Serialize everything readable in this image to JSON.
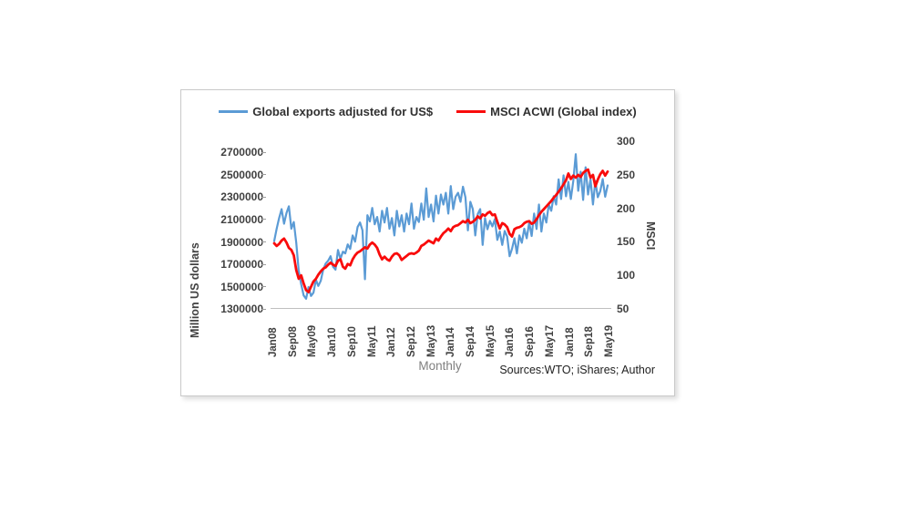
{
  "chart_data": {
    "type": "line",
    "frequency": "monthly",
    "x_start": "Jan08",
    "x_end": "May19",
    "xlabel": "Monthly",
    "x_tick_labels": [
      "Jan08",
      "Sep08",
      "May09",
      "Jan10",
      "Sep10",
      "May11",
      "Jan12",
      "Sep12",
      "May13",
      "Jan14",
      "Sep14",
      "May15",
      "Jan16",
      "Sep16",
      "May17",
      "Jan18",
      "Sep18",
      "May19"
    ],
    "left_axis": {
      "title": "Million US dollars",
      "min": 1300000,
      "max": 2700000,
      "tick_step": 200000,
      "tick_labels": [
        "2700000",
        "2500000",
        "2300000",
        "2100000",
        "1900000",
        "1700000",
        "1500000",
        "1300000"
      ]
    },
    "right_axis": {
      "title": "MSCI",
      "min": 50,
      "max": 300,
      "tick_step": 50,
      "tick_labels": [
        "300",
        "250",
        "200",
        "150",
        "100",
        "50"
      ]
    },
    "grid": false,
    "legend_position": "top",
    "source_note": "Sources:WTO; iShares; Author",
    "series": [
      {
        "name": "Global exports adjusted for US$",
        "axis": "left",
        "unit": "million US dollars",
        "color": "#5B9BD5",
        "values": [
          1905000,
          2015000,
          2110000,
          2190000,
          2060000,
          2155000,
          2215000,
          2015000,
          2075000,
          1890000,
          1640000,
          1520000,
          1420000,
          1390000,
          1495000,
          1415000,
          1445000,
          1560000,
          1505000,
          1550000,
          1650000,
          1705000,
          1730000,
          1770000,
          1675000,
          1650000,
          1825000,
          1745000,
          1810000,
          1795000,
          1875000,
          1835000,
          1955000,
          1900000,
          2030000,
          2070000,
          2000000,
          1565000,
          2135000,
          2080000,
          2200000,
          2055000,
          2120000,
          1990000,
          2175000,
          2070000,
          2200000,
          2015000,
          2110000,
          1955000,
          2175000,
          2035000,
          2135000,
          1990000,
          2150000,
          2055000,
          2240000,
          2015000,
          2120000,
          2075000,
          2240000,
          2095000,
          2375000,
          2120000,
          2230000,
          2080000,
          2310000,
          2150000,
          2320000,
          2230000,
          2335000,
          2150000,
          2395000,
          2190000,
          2300000,
          2335000,
          2255000,
          2390000,
          2295000,
          2000000,
          2255000,
          2190000,
          1955000,
          2145000,
          2190000,
          1870000,
          2110000,
          2010000,
          2085000,
          2035000,
          2100000,
          1915000,
          1990000,
          1870000,
          1995000,
          1945000,
          1770000,
          1835000,
          1930000,
          1795000,
          1955000,
          1890000,
          2015000,
          1930000,
          2070000,
          1950000,
          2150000,
          2013000,
          2230000,
          1990000,
          2150000,
          2070000,
          2230000,
          2175000,
          2305000,
          2230000,
          2455000,
          2280000,
          2490000,
          2304000,
          2433000,
          2280000,
          2441000,
          2680000,
          2353000,
          2523000,
          2272000,
          2563000,
          2320000,
          2458000,
          2231000,
          2440000,
          2296000,
          2350000,
          2458000,
          2300000,
          2401000
        ]
      },
      {
        "name": "MSCI ACWI (Global index)",
        "axis": "right",
        "unit": "index",
        "color": "#F90B0B",
        "values": [
          148,
          144,
          147,
          152,
          155,
          149,
          141,
          138,
          130,
          108,
          95,
          100,
          88,
          78,
          75,
          83,
          91,
          95,
          101,
          106,
          110,
          112,
          116,
          119,
          116,
          114,
          122,
          124,
          113,
          110,
          117,
          115,
          124,
          130,
          134,
          136,
          139,
          142,
          140,
          146,
          149,
          146,
          141,
          131,
          124,
          128,
          124,
          122,
          128,
          132,
          133,
          130,
          123,
          126,
          129,
          132,
          133,
          132,
          134,
          137,
          144,
          146,
          149,
          152,
          150,
          148,
          155,
          152,
          158,
          163,
          166,
          170,
          166,
          172,
          174,
          175,
          178,
          181,
          179,
          183,
          178,
          180,
          183,
          188,
          185,
          191,
          189,
          193,
          195,
          190,
          191,
          180,
          170,
          178,
          176,
          172,
          162,
          158,
          169,
          171,
          172,
          174,
          178,
          180,
          181,
          177,
          179,
          184,
          190,
          195,
          199,
          203,
          207,
          211,
          216,
          220,
          225,
          230,
          236,
          242,
          252,
          244,
          249,
          246,
          250,
          247,
          253,
          256,
          258,
          246,
          250,
          233,
          243,
          251,
          256,
          249,
          255
        ]
      }
    ]
  }
}
